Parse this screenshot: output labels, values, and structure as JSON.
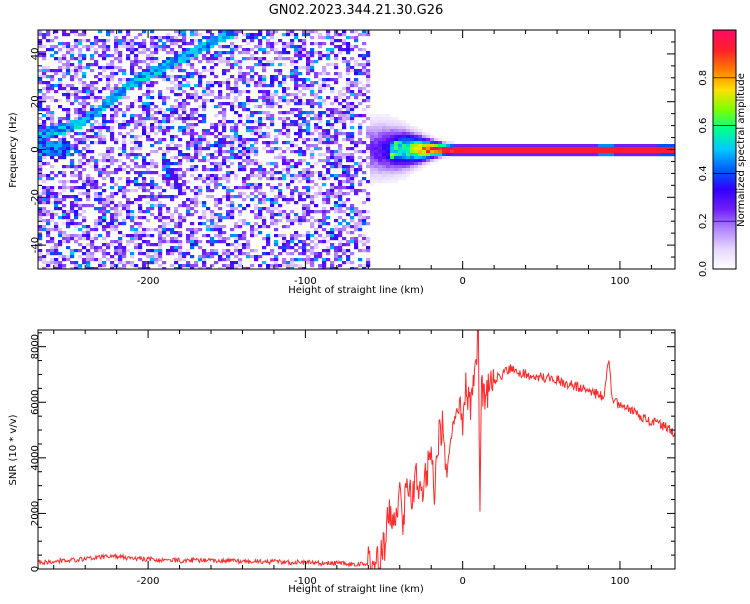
{
  "title": "GN02.2023.344.21.30.G26",
  "chart_data": [
    {
      "type": "heatmap",
      "xlabel": "Height of straight line (km)",
      "ylabel": "Frequency (Hz)",
      "xlim": [
        -270,
        135
      ],
      "ylim": [
        -50,
        50
      ],
      "xticks": [
        -200,
        -100,
        0,
        100
      ],
      "yticks": [
        -40,
        -20,
        0,
        20,
        40
      ],
      "colorbar": {
        "label": "Normalized spectral amplitude",
        "range": [
          0,
          1
        ],
        "ticks": [
          0,
          0.2,
          0.4,
          0.6,
          0.8
        ],
        "colors": [
          "#ffffff",
          "#e6d7ff",
          "#b287ff",
          "#6f1ff7",
          "#3000ff",
          "#0060ff",
          "#00c8ff",
          "#00ff90",
          "#7dff00",
          "#ffe000",
          "#ff7a00",
          "#ff1e2b",
          "#ff0a64"
        ]
      },
      "features": {
        "noise_region": [
          -270,
          -55
        ],
        "transition_region": [
          -60,
          -5
        ],
        "stable_tone_frequency": 0,
        "drifting_line_points": [
          [
            -270,
            5
          ],
          [
            -240,
            12
          ],
          [
            -210,
            28
          ],
          [
            -180,
            38
          ],
          [
            -150,
            48
          ]
        ]
      }
    },
    {
      "type": "line",
      "xlabel": "Height of straight line (km)",
      "ylabel": "SNR (10 * v/v)",
      "xlim": [
        -270,
        135
      ],
      "ylim": [
        0,
        8600
      ],
      "xticks": [
        -200,
        -100,
        0,
        100
      ],
      "yticks": [
        0,
        2000,
        4000,
        6000,
        8000
      ],
      "series": [
        {
          "color": "#ff2a2a",
          "x": [
            -270,
            -260,
            -250,
            -240,
            -230,
            -220,
            -210,
            -200,
            -190,
            -180,
            -170,
            -160,
            -150,
            -140,
            -130,
            -120,
            -110,
            -100,
            -90,
            -80,
            -70,
            -60,
            -55,
            -50,
            -47,
            -44,
            -40,
            -38,
            -35,
            -32,
            -30,
            -28,
            -25,
            -22,
            -20,
            -18,
            -15,
            -12,
            -10,
            -8,
            -5,
            -2,
            0,
            2,
            5,
            8,
            10,
            11,
            12,
            15,
            18,
            20,
            25,
            30,
            35,
            40,
            50,
            60,
            70,
            80,
            90,
            93,
            95,
            100,
            110,
            120,
            130,
            135
          ],
          "y": [
            250,
            270,
            320,
            360,
            420,
            450,
            380,
            360,
            330,
            300,
            320,
            300,
            290,
            270,
            260,
            260,
            240,
            230,
            210,
            200,
            190,
            180,
            240,
            700,
            2200,
            1500,
            2600,
            1800,
            3000,
            2300,
            3400,
            2600,
            2900,
            3700,
            4600,
            2800,
            4800,
            5200,
            3000,
            4700,
            5800,
            6100,
            5000,
            6600,
            5900,
            6800,
            8400,
            2000,
            6500,
            6200,
            6900,
            6800,
            7000,
            7200,
            7100,
            7000,
            6900,
            6800,
            6600,
            6400,
            6200,
            7600,
            6100,
            5900,
            5600,
            5300,
            5100,
            4900
          ]
        }
      ]
    }
  ]
}
